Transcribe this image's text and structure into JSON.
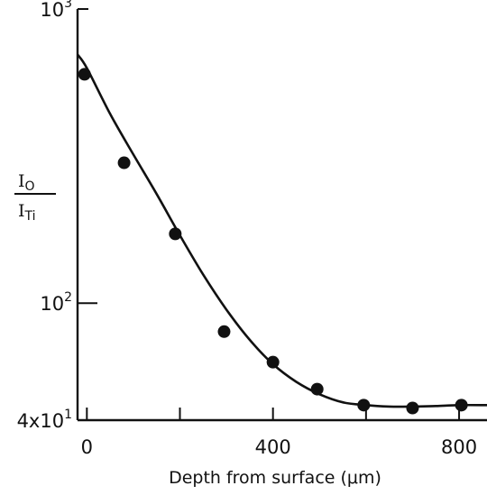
{
  "chart_data": {
    "type": "scatter",
    "title": "",
    "xlabel": "Depth from surface (μm)",
    "ylabel": {
      "numerator": "I",
      "numerator_sub": "O",
      "denominator": "I",
      "denominator_sub": "Ti"
    },
    "y_scale": "log",
    "xlim": [
      -20,
      860
    ],
    "ylim": [
      40,
      1000
    ],
    "x_ticks": [
      0,
      200,
      400,
      600,
      800
    ],
    "x_tick_labels": [
      "0",
      "",
      "400",
      "",
      "800"
    ],
    "y_tick_labels": [
      {
        "value": 1000,
        "base": "10",
        "exp": "3"
      },
      {
        "value": 100,
        "base": "10",
        "exp": "2"
      },
      {
        "value": 40,
        "base": "4x10",
        "exp": "1"
      }
    ],
    "series": [
      {
        "name": "",
        "points": [
          {
            "x": -5,
            "y": 600
          },
          {
            "x": 80,
            "y": 300
          },
          {
            "x": 190,
            "y": 172
          },
          {
            "x": 295,
            "y": 80
          },
          {
            "x": 400,
            "y": 63
          },
          {
            "x": 495,
            "y": 51
          },
          {
            "x": 595,
            "y": 45
          },
          {
            "x": 700,
            "y": 44
          },
          {
            "x": 805,
            "y": 45
          }
        ]
      }
    ],
    "fit_curve": {
      "x": [
        -20,
        0,
        50,
        100,
        150,
        200,
        250,
        300,
        350,
        400,
        450,
        500,
        550,
        600,
        650,
        700,
        750,
        800,
        860
      ],
      "y": [
        700,
        630,
        440,
        320,
        235,
        170,
        125,
        95,
        75,
        62,
        54,
        49,
        46,
        45,
        44.5,
        44.5,
        44.7,
        45,
        45
      ]
    },
    "grid": false,
    "legend": "none"
  }
}
